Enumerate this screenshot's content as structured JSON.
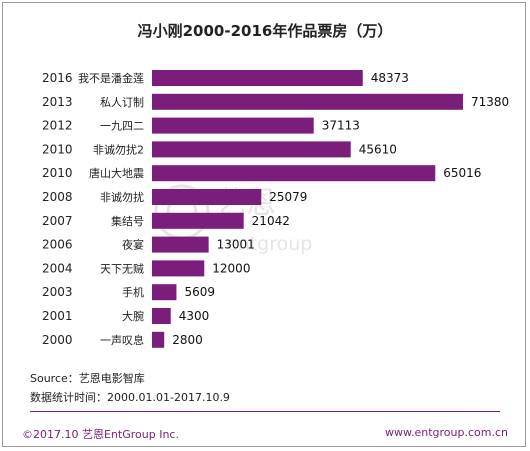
{
  "title": "冯小刚2000-2016年作品票房（万）",
  "colors": {
    "bar": "#7b1d7b",
    "accent": "#7b1d7b"
  },
  "watermark": {
    "cn": "艺恩",
    "en": "entgroup"
  },
  "source_label": "Source：艺恩电影智库",
  "period_label": "数据统计时间：2000.01.01-2017.10.9",
  "copyright": "©2017.10 艺恩EntGroup Inc.",
  "website": "www.entgroup.com.cn",
  "chart_data": {
    "type": "bar",
    "orientation": "horizontal",
    "title": "冯小刚2000-2016年作品票房（万）",
    "unit": "万",
    "categories": [
      {
        "year": "2016",
        "film": "我不是潘金莲"
      },
      {
        "year": "2013",
        "film": "私人订制"
      },
      {
        "year": "2012",
        "film": "一九四二"
      },
      {
        "year": "2010",
        "film": "非诚勿扰2"
      },
      {
        "year": "2010",
        "film": "唐山大地震"
      },
      {
        "year": "2008",
        "film": "非诚勿扰"
      },
      {
        "year": "2007",
        "film": "集结号"
      },
      {
        "year": "2006",
        "film": "夜宴"
      },
      {
        "year": "2004",
        "film": "天下无贼"
      },
      {
        "year": "2003",
        "film": "手机"
      },
      {
        "year": "2001",
        "film": "大腕"
      },
      {
        "year": "2000",
        "film": "一声叹息"
      }
    ],
    "values": [
      48373,
      71380,
      37113,
      45610,
      65016,
      25079,
      21042,
      13001,
      12000,
      5609,
      4300,
      2800
    ],
    "xlim": [
      0,
      71380
    ],
    "grid": false,
    "legend": "none"
  }
}
